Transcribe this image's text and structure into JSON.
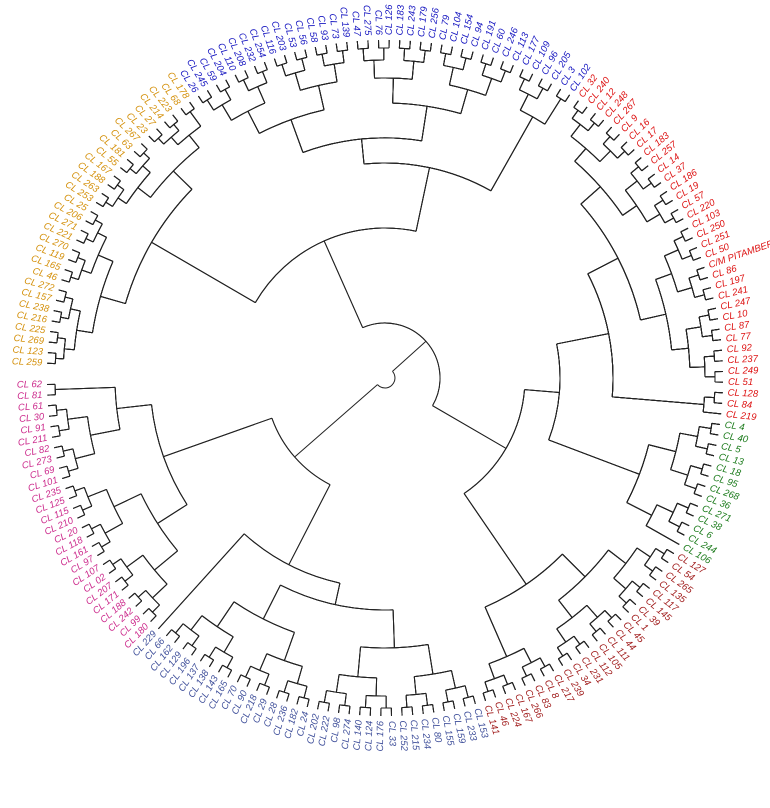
{
  "colors": {
    "orange": "#d4900a",
    "magenta": "#cc2a8c",
    "slate": "#3f4f9a",
    "maroon": "#a01c1c",
    "green": "#1a7a1a",
    "red": "#dd1111",
    "blue": "#1515c0",
    "branch": "#222222"
  },
  "clusters": [
    {
      "color": "orange",
      "labels": [
        "CL 259",
        "CL 123",
        "CL 269",
        "CL 225",
        "CL 216",
        "CL 238",
        "CL 157",
        "CL 272",
        "CL 46",
        "CL 165",
        "CL 119",
        "CL 270",
        "CL 221",
        "CL 271",
        "CL 206",
        "CL 25",
        "CL 253",
        "CL 263",
        "CL 188",
        "CL 167",
        "CL 55",
        "CL 181",
        "CL 63",
        "CL 267",
        "CL 23",
        "CL 27",
        "CL 214",
        "CL 223",
        "CL 68",
        "CL 178"
      ]
    },
    {
      "color": "blue",
      "labels": [
        "CL 26",
        "CL 245",
        "CL 59",
        "CL 204",
        "CL 110",
        "CL 208",
        "CL 232",
        "CL 254",
        "CL 116",
        "CL 203",
        "CL 53",
        "CL 56",
        "CL 58",
        "CL 93",
        "CL 73",
        "CL 139",
        "CL 47",
        "CL 275",
        "CL 76",
        "CL 126",
        "CL 183",
        "CL 243",
        "CL 179",
        "CL 256",
        "CL 79",
        "CL 104",
        "CL 154",
        "CL 94",
        "CL 191",
        "CL 60",
        "CL 246",
        "CL 113",
        "CL 177",
        "CL 109",
        "CL 96",
        "CL 205",
        "CL 3",
        "CL 102"
      ]
    },
    {
      "color": "red",
      "labels": [
        "CL 32",
        "CL 240",
        "CL 12",
        "CL 248",
        "CL 267",
        "CL 9",
        "CL 16",
        "CL 17",
        "CL 183",
        "CL 257",
        "CL 14",
        "CL 37",
        "CL 186",
        "CL 19",
        "CL 57",
        "CL 220",
        "CL 103",
        "CL 250",
        "CL 251",
        "CL 50",
        "C/M PITAMBER",
        "CL 86",
        "CL 197",
        "CL 241",
        "CL 247",
        "CL 10",
        "CL 87",
        "CL 77",
        "CL 92",
        "CL 237",
        "CL 249",
        "CL 51",
        "CL 128",
        "CL 84",
        "CL 219"
      ]
    },
    {
      "color": "green",
      "labels": [
        "CL 4",
        "CL 40",
        "CL 5",
        "CL 13",
        "CL 18",
        "CL 95",
        "CL 268",
        "CL 36",
        "CL 271",
        "CL 38",
        "CL 6",
        "CL 244",
        "CL 106"
      ]
    },
    {
      "color": "maroon",
      "labels": [
        "CL 127",
        "CL 54",
        "CL 265",
        "CL 135",
        "CL 117",
        "CL 145",
        "CL 39",
        "CL 1",
        "CL 45",
        "CL 44",
        "CL 111",
        "CL 105",
        "CL 112",
        "CL 231",
        "CL 34",
        "CL 239",
        "CL 217",
        "CL 8",
        "CL 83",
        "CL 266",
        "CL 167",
        "CL 224",
        "CL 46",
        "CL 141"
      ]
    },
    {
      "color": "slate",
      "labels": [
        "CL 153",
        "CL 233",
        "CL 159",
        "CL 155",
        "CL 80",
        "CL 234",
        "CL 215",
        "CL 252",
        "CL 33",
        "CL 176",
        "CL 124",
        "CL 140",
        "CL 274",
        "CL 98",
        "CL 222",
        "CL 202",
        "CL 24",
        "CL 182",
        "CL 236",
        "CL 28",
        "CL 29",
        "CL 218",
        "CL 90",
        "CL 70",
        "CL 165",
        "CL 143",
        "CL 138",
        "CL 137",
        "CL 196",
        "CL 129",
        "CL 162",
        "CL 66",
        "CL 229"
      ]
    },
    {
      "color": "magenta",
      "labels": [
        "CL 180",
        "CL 99",
        "CL 242",
        "CL 188",
        "CL 171",
        "CL 207",
        "CL 02",
        "CL 107",
        "CL 97",
        "CL 161",
        "CL 118",
        "CL 20",
        "CL 210",
        "CL 115",
        "CL 125",
        "CL 235",
        "CL 101",
        "CL 69",
        "CL 273",
        "CL 82",
        "CL 211",
        "CL 91",
        "CL 30",
        "CL 61",
        "CL 81",
        "CL 62"
      ]
    }
  ]
}
